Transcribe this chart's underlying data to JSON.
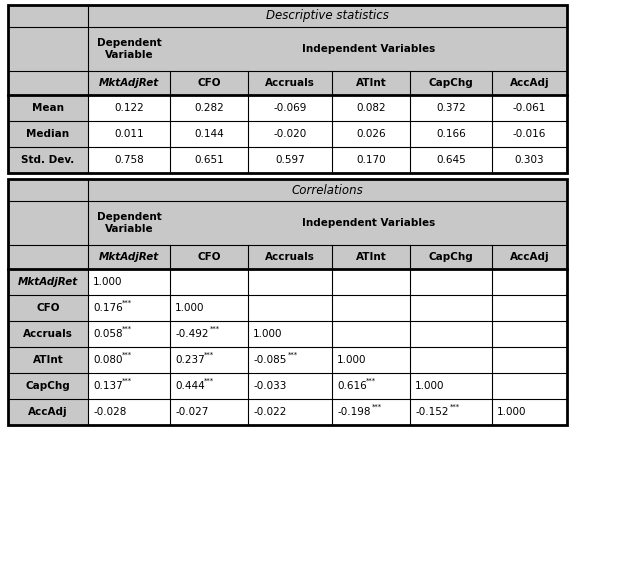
{
  "title": "Descriptive statistics",
  "title2": "Correlations",
  "col_headers": [
    "MktAdjRet",
    "CFO",
    "Accruals",
    "ATInt",
    "CapChg",
    "AccAdj"
  ],
  "stat_row_labels": [
    "Mean",
    "Median",
    "Std. Dev."
  ],
  "stat_data": [
    [
      "0.122",
      "0.282",
      "-0.069",
      "0.082",
      "0.372",
      "-0.061"
    ],
    [
      "0.011",
      "0.144",
      "-0.020",
      "0.026",
      "0.166",
      "-0.016"
    ],
    [
      "0.758",
      "0.651",
      "0.597",
      "0.170",
      "0.645",
      "0.303"
    ]
  ],
  "corr_row_labels": [
    "MktAdjRet",
    "CFO",
    "Accruals",
    "ATInt",
    "CapChg",
    "AccAdj"
  ],
  "corr_data": [
    [
      "1.000",
      "",
      "",
      "",
      "",
      ""
    ],
    [
      "0.176***",
      "1.000",
      "",
      "",
      "",
      ""
    ],
    [
      "0.058***",
      "-0.492***",
      "1.000",
      "",
      "",
      ""
    ],
    [
      "0.080***",
      "0.237***",
      "-0.085***",
      "1.000",
      "",
      ""
    ],
    [
      "0.137***",
      "0.444***",
      "-0.033",
      "0.616***",
      "1.000",
      ""
    ],
    [
      "-0.028",
      "-0.027",
      "-0.022",
      "-0.198***",
      "-0.152***",
      "1.000"
    ]
  ],
  "bg_gray": "#c8c8c8",
  "bg_white": "#ffffff",
  "lw_thin": 0.8,
  "lw_thick": 2.0
}
